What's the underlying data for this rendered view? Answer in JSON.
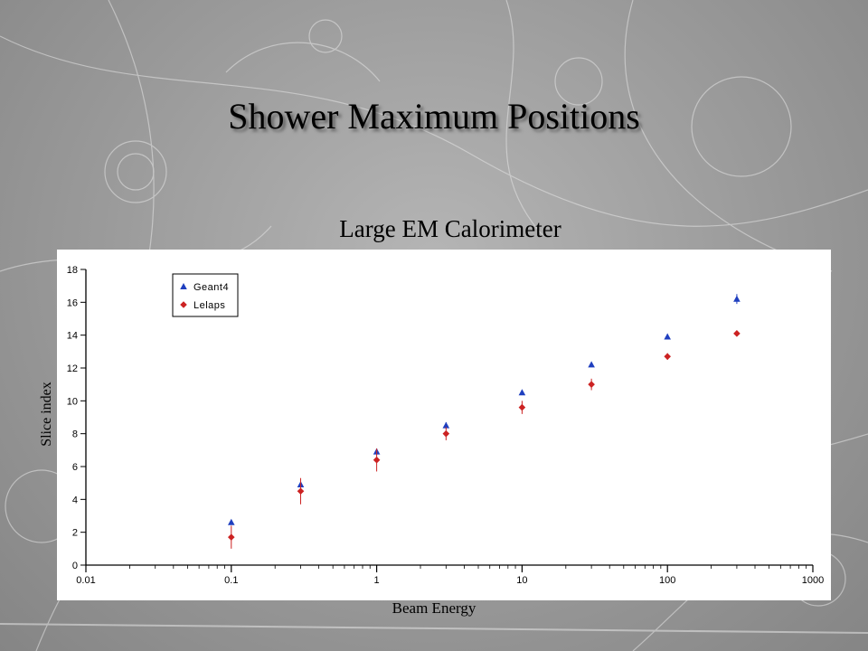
{
  "slide": {
    "title": "Shower Maximum Positions"
  },
  "chart_data": {
    "type": "scatter",
    "title": "Large EM Calorimeter",
    "xlabel": "Beam Energy",
    "ylabel": "Slice index",
    "xscale": "log",
    "xlim": [
      0.01,
      1000
    ],
    "ylim": [
      0,
      18
    ],
    "xticks": [
      "0.01",
      "0.1",
      "1",
      "10",
      "100",
      "1000"
    ],
    "yticks": [
      "0",
      "2",
      "4",
      "6",
      "8",
      "10",
      "12",
      "14",
      "16",
      "18"
    ],
    "grid": false,
    "legend_position": "top-left",
    "series": [
      {
        "name": "Geant4",
        "marker": "triangle",
        "color": "#1f3fbf",
        "x": [
          0.1,
          0.3,
          1,
          3,
          10,
          30,
          100,
          300
        ],
        "y": [
          2.6,
          4.9,
          6.9,
          8.5,
          10.5,
          12.2,
          13.9,
          16.2
        ],
        "err": [
          0.15,
          0.2,
          0.2,
          0.2,
          0.15,
          0.15,
          0.15,
          0.3
        ]
      },
      {
        "name": "Lelaps",
        "marker": "diamond",
        "color": "#cc2222",
        "x": [
          0.1,
          0.3,
          1,
          3,
          10,
          30,
          100,
          300
        ],
        "y": [
          1.7,
          4.5,
          6.4,
          8.0,
          9.6,
          11.0,
          12.7,
          14.1
        ],
        "err": [
          0.7,
          0.8,
          0.7,
          0.4,
          0.4,
          0.35,
          0.2,
          0.15
        ]
      }
    ]
  }
}
